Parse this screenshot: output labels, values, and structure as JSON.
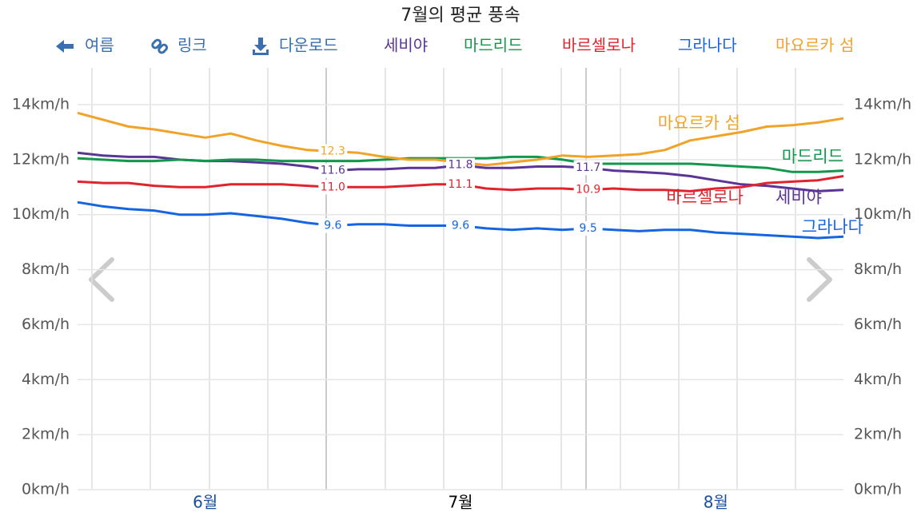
{
  "chart_data": {
    "type": "line",
    "title": "7월의 평균 풍속",
    "toolbar": [
      "여름",
      "링크",
      "다운로드"
    ],
    "categories": [
      null,
      null,
      null,
      null,
      null,
      "6월",
      null,
      null,
      null,
      null,
      null,
      null,
      null,
      null,
      null,
      "7월",
      null,
      null,
      null,
      null,
      null,
      null,
      null,
      null,
      null,
      "8월",
      null,
      null,
      null,
      null,
      null
    ],
    "highlight_index": 15,
    "highlight_color": "#000000",
    "category_color": "#1a4fa0",
    "ylim": [
      0,
      14
    ],
    "yticks": [
      {
        "value": 0,
        "label": "0km/h"
      },
      {
        "value": 2,
        "label": "2km/h"
      },
      {
        "value": 4,
        "label": "4km/h"
      },
      {
        "value": 6,
        "label": "6km/h"
      },
      {
        "value": 8,
        "label": "8km/h"
      },
      {
        "value": 10,
        "label": "10km/h"
      },
      {
        "value": 12,
        "label": "12km/h"
      },
      {
        "value": 14,
        "label": "14km/h"
      }
    ],
    "grid": true,
    "series": [
      {
        "name": "세비야",
        "color": "#5b3595",
        "values": [
          12.25,
          12.15,
          12.1,
          12.1,
          12.0,
          11.95,
          11.95,
          11.9,
          11.85,
          11.75,
          11.6,
          11.65,
          11.65,
          11.7,
          11.7,
          11.8,
          11.7,
          11.7,
          11.75,
          11.75,
          11.7,
          11.6,
          11.55,
          11.5,
          11.4,
          11.25,
          11.1,
          11.05,
          10.95,
          10.85,
          10.9
        ],
        "value_labels": [
          null,
          null,
          null,
          null,
          null,
          null,
          null,
          null,
          null,
          null,
          "11.6",
          null,
          null,
          null,
          null,
          "11.8",
          null,
          null,
          null,
          null,
          "11.7",
          null,
          null,
          null,
          null,
          null,
          null,
          null,
          null,
          null,
          null
        ]
      },
      {
        "name": "마드리드",
        "color": "#13974c",
        "values": [
          12.05,
          12.0,
          11.95,
          11.95,
          12.0,
          11.95,
          12.0,
          12.0,
          11.95,
          11.95,
          11.95,
          11.95,
          12.0,
          12.05,
          12.05,
          12.05,
          12.05,
          12.1,
          12.1,
          12.0,
          11.85,
          11.85,
          11.85,
          11.85,
          11.85,
          11.8,
          11.75,
          11.7,
          11.55,
          11.55,
          11.6
        ]
      },
      {
        "name": "바르셀로나",
        "color": "#e0242e",
        "values": [
          11.2,
          11.15,
          11.15,
          11.05,
          11.0,
          11.0,
          11.1,
          11.1,
          11.1,
          11.05,
          11.0,
          11.0,
          11.0,
          11.05,
          11.1,
          11.1,
          10.95,
          10.9,
          10.95,
          10.95,
          10.9,
          10.95,
          10.9,
          10.9,
          10.85,
          10.95,
          11.0,
          11.15,
          11.2,
          11.25,
          11.4
        ],
        "value_labels": [
          null,
          null,
          null,
          null,
          null,
          null,
          null,
          null,
          null,
          null,
          "11.0",
          null,
          null,
          null,
          null,
          "11.1",
          null,
          null,
          null,
          null,
          "10.9",
          null,
          null,
          null,
          null,
          null,
          null,
          null,
          null,
          null,
          null
        ]
      },
      {
        "name": "그라나다",
        "color": "#1565e2",
        "values": [
          10.45,
          10.3,
          10.2,
          10.15,
          10.0,
          10.0,
          10.05,
          9.95,
          9.85,
          9.7,
          9.6,
          9.65,
          9.65,
          9.6,
          9.6,
          9.6,
          9.5,
          9.45,
          9.5,
          9.45,
          9.5,
          9.45,
          9.4,
          9.45,
          9.45,
          9.35,
          9.3,
          9.25,
          9.2,
          9.15,
          9.2
        ],
        "value_labels": [
          null,
          null,
          null,
          null,
          null,
          null,
          null,
          null,
          null,
          null,
          "9.6",
          null,
          null,
          null,
          null,
          "9.6",
          null,
          null,
          null,
          null,
          "9.5",
          null,
          null,
          null,
          null,
          null,
          null,
          null,
          null,
          null,
          null
        ]
      },
      {
        "name": "마요르카 섬",
        "color": "#f0a328",
        "values": [
          13.7,
          13.45,
          13.2,
          13.1,
          12.95,
          12.8,
          12.95,
          12.7,
          12.5,
          12.35,
          12.3,
          12.25,
          12.1,
          12.0,
          12.0,
          11.9,
          11.8,
          11.9,
          12.0,
          12.15,
          12.1,
          12.15,
          12.2,
          12.35,
          12.7,
          12.85,
          13.0,
          13.2,
          13.25,
          13.35,
          13.5
        ],
        "value_labels": [
          null,
          null,
          null,
          null,
          null,
          null,
          null,
          null,
          null,
          null,
          "12.3",
          null,
          null,
          null,
          null,
          null,
          null,
          null,
          null,
          null,
          null,
          null,
          null,
          null,
          null,
          null,
          null,
          null,
          null,
          null,
          null
        ]
      }
    ]
  }
}
